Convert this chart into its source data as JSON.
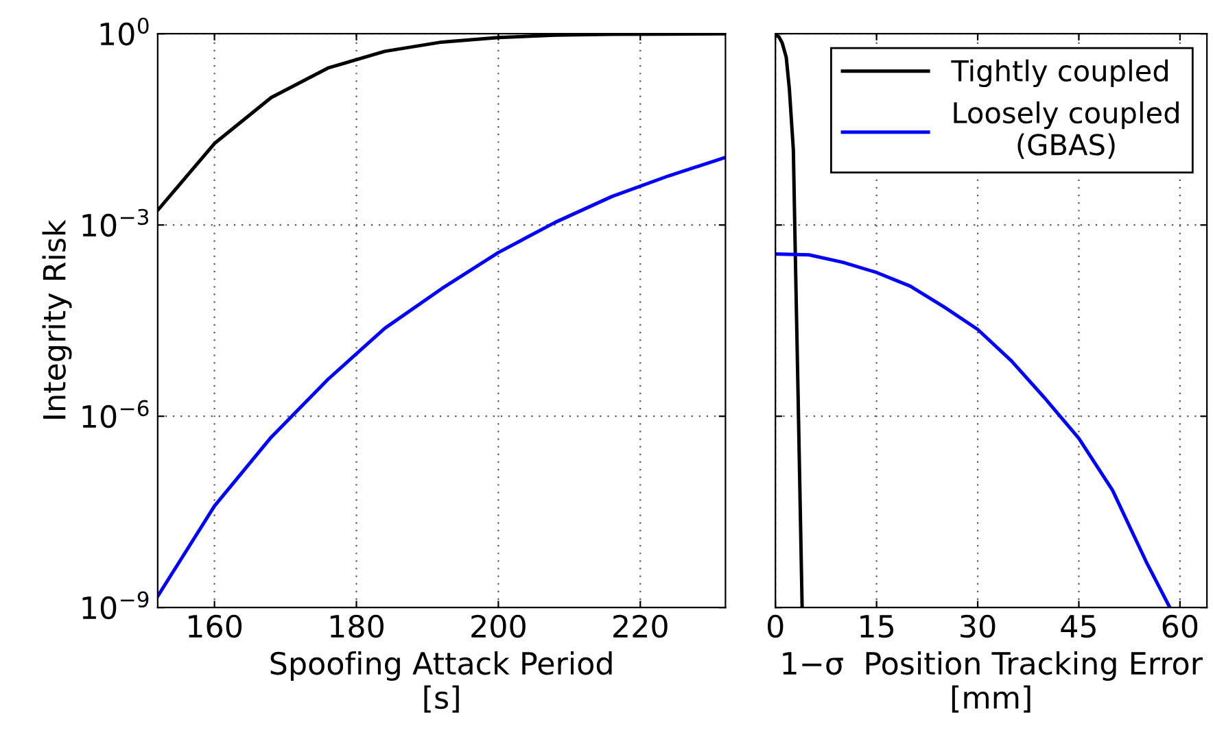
{
  "chart_data": [
    {
      "type": "line",
      "xlabel": "Spoofing Attack Period\n[s]",
      "ylabel": "Integrity Risk",
      "log": "y",
      "grid": true,
      "line_style": "solid",
      "legend": false,
      "xlim": [
        152,
        232
      ],
      "xticks": [
        160,
        180,
        200,
        220
      ],
      "ylim": [
        1e-09,
        1
      ],
      "yticks": [
        {
          "value": 1e-09,
          "label": "10$^{−9}$"
        },
        {
          "value": 1e-06,
          "label": "10$^{−6}$"
        },
        {
          "value": 0.001,
          "label": "10$^{−3}$"
        },
        {
          "value": 1,
          "label": "10$^{0}$"
        }
      ],
      "x": [
        152,
        160,
        168,
        176,
        184,
        192,
        200,
        208,
        216,
        224,
        232
      ],
      "series": [
        {
          "color": "#000000",
          "values": [
            0.0017,
            0.019,
            0.1,
            0.29,
            0.53,
            0.74,
            0.87,
            0.95,
            0.98,
            0.99,
            1
          ]
        },
        {
          "color": "#0000ff",
          "values": [
            1.5e-09,
            3.9e-08,
            4.7e-07,
            3.8e-06,
            2.4e-05,
            0.0001,
            0.00037,
            0.0011,
            0.0028,
            0.0059,
            0.0115
          ]
        }
      ]
    },
    {
      "type": "line",
      "xlabel": "1−σ  Position Tracking Error\n[mm]",
      "log": "y",
      "grid": true,
      "line_style": "solid",
      "legend": "top right",
      "tick_labels": "x",
      "xlim": [
        0,
        64
      ],
      "xticks": [
        0,
        15,
        30,
        45,
        60
      ],
      "ylim": [
        1e-09,
        1
      ],
      "yticks": [
        1e-09,
        1e-06,
        0.001,
        1
      ],
      "series": [
        {
          "name": "Tightly coupled",
          "color": "#000000",
          "x": [
            0,
            0.5,
            1,
            1.6,
            2.07,
            2.66,
            2.95,
            3.37,
            3.96
          ],
          "values": [
            0.95,
            0.9,
            0.72,
            0.43,
            0.135,
            0.015,
            0.00034,
            1.9e-06,
            1e-09
          ]
        },
        {
          "name": "Loosely coupled\n(GBAS)",
          "color": "#0000ff",
          "x": [
            0,
            5,
            10,
            15,
            20,
            25,
            30,
            35,
            40,
            45,
            50,
            55,
            58.5
          ],
          "values": [
            0.00035,
            0.00034,
            0.00026,
            0.00018,
            0.00011,
            5.2e-05,
            2.3e-05,
            7.4e-06,
            1.9e-06,
            4.5e-07,
            6.9e-08,
            5.2e-09,
            1e-09
          ]
        }
      ]
    }
  ]
}
